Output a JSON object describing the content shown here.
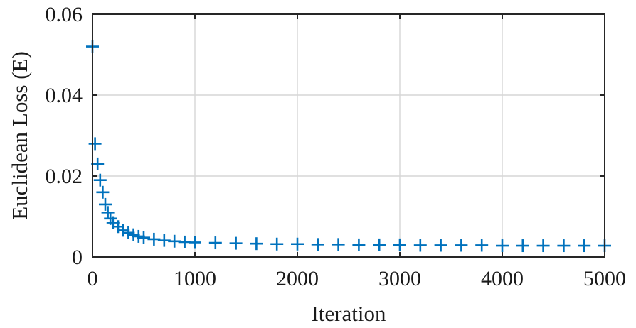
{
  "chart_data": {
    "type": "scatter",
    "title": "",
    "xlabel": "Iteration",
    "ylabel": "Euclidean Loss (E)",
    "xlim": [
      0,
      5000
    ],
    "ylim": [
      0,
      0.06
    ],
    "xticks": [
      0,
      1000,
      2000,
      3000,
      4000,
      5000
    ],
    "xtick_labels": [
      "0",
      "1000",
      "2000",
      "3000",
      "4000",
      "5000"
    ],
    "yticks": [
      0,
      0.02,
      0.04,
      0.06
    ],
    "ytick_labels": [
      "0",
      "0.02",
      "0.04",
      "0.06"
    ],
    "grid": true,
    "legend": "none",
    "marker": "plus",
    "color": "#0072BD",
    "series": [
      {
        "x": [
          0,
          25,
          50,
          75,
          100,
          125,
          150,
          175,
          200,
          250,
          300,
          350,
          400,
          450,
          500,
          600,
          700,
          800,
          900,
          1000,
          1200,
          1400,
          1600,
          1800,
          2000,
          2200,
          2400,
          2600,
          2800,
          3000,
          3200,
          3400,
          3600,
          3800,
          4000,
          4200,
          4400,
          4600,
          4800,
          5000
        ],
        "y": [
          0.052,
          0.028,
          0.023,
          0.019,
          0.016,
          0.013,
          0.011,
          0.0095,
          0.0085,
          0.0075,
          0.0066,
          0.006,
          0.0055,
          0.0051,
          0.0048,
          0.0044,
          0.0041,
          0.0039,
          0.0037,
          0.0036,
          0.0035,
          0.0034,
          0.0033,
          0.0032,
          0.0032,
          0.0031,
          0.0031,
          0.003,
          0.003,
          0.003,
          0.0029,
          0.0029,
          0.0029,
          0.0029,
          0.0028,
          0.0028,
          0.0028,
          0.0028,
          0.0028,
          0.0028
        ]
      }
    ]
  }
}
